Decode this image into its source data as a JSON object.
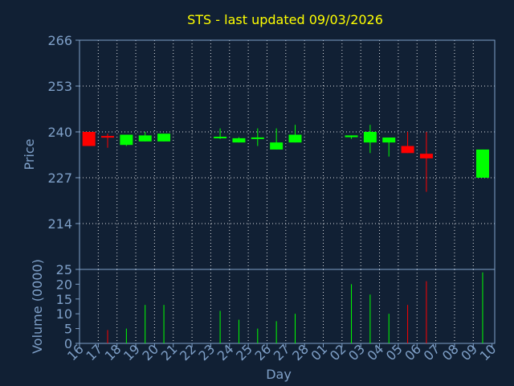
{
  "colors": {
    "background": "#112034",
    "axis": "#7fa0c8",
    "title": "#ffff00",
    "grid": "#ffffff",
    "up": "#00ff00",
    "down": "#ff0000"
  },
  "chart_data": {
    "type": "candlestick",
    "title": "STS - last updated 09/03/2026",
    "xlabel": "Day",
    "ylabel": "Price",
    "volume_label": "Volume (0000)",
    "grid": true,
    "ylim": [
      201,
      266
    ],
    "y_ticks": [
      214,
      227,
      240,
      253,
      266
    ],
    "volume_ylim": [
      0,
      25
    ],
    "volume_ticks": [
      0,
      5,
      10,
      15,
      20,
      25
    ],
    "x_ticks": [
      "16",
      "17",
      "18",
      "19",
      "20",
      "21",
      "22",
      "23",
      "24",
      "25",
      "26",
      "27",
      "28",
      "01",
      "02",
      "03",
      "04",
      "05",
      "06",
      "07",
      "08",
      "09",
      "10"
    ],
    "candles": [
      {
        "day": "16",
        "open": 240.0,
        "close": 236.0,
        "high": 240.0,
        "low": 236.0,
        "volume": 0
      },
      {
        "day": "17",
        "open": 238.6,
        "close": 238.2,
        "high": 239.5,
        "low": 235.5,
        "volume": 4.5
      },
      {
        "day": "18",
        "open": 236.3,
        "close": 239.2,
        "high": 239.2,
        "low": 236.0,
        "volume": 5
      },
      {
        "day": "19",
        "open": 237.3,
        "close": 239.0,
        "high": 240.0,
        "low": 237.3,
        "volume": 13
      },
      {
        "day": "20",
        "open": 237.3,
        "close": 239.5,
        "high": 239.5,
        "low": 237.3,
        "volume": 13
      },
      {
        "day": "23",
        "open": 238.0,
        "close": 238.4,
        "high": 241.0,
        "low": 238.0,
        "volume": 11
      },
      {
        "day": "24",
        "open": 237.0,
        "close": 238.2,
        "high": 238.5,
        "low": 237.0,
        "volume": 8
      },
      {
        "day": "25",
        "open": 238.0,
        "close": 238.2,
        "high": 241.0,
        "low": 236.0,
        "volume": 5
      },
      {
        "day": "26",
        "open": 235.0,
        "close": 237.0,
        "high": 241.0,
        "low": 235.0,
        "volume": 7.5
      },
      {
        "day": "27",
        "open": 237.0,
        "close": 239.2,
        "high": 242.0,
        "low": 237.0,
        "volume": 10
      },
      {
        "day": "02",
        "open": 238.5,
        "close": 239.0,
        "high": 239.0,
        "low": 238.0,
        "volume": 20
      },
      {
        "day": "03",
        "open": 237.0,
        "close": 240.0,
        "high": 242.0,
        "low": 234.0,
        "volume": 16.5
      },
      {
        "day": "04",
        "open": 237.0,
        "close": 238.4,
        "high": 238.4,
        "low": 233.0,
        "volume": 10
      },
      {
        "day": "05",
        "open": 236.0,
        "close": 234.0,
        "high": 240.0,
        "low": 234.0,
        "volume": 13
      },
      {
        "day": "06",
        "open": 233.8,
        "close": 232.5,
        "high": 240.0,
        "low": 223.0,
        "volume": 21
      },
      {
        "day": "09",
        "open": 227.0,
        "close": 235.0,
        "high": 235.0,
        "low": 227.0,
        "volume": 24
      }
    ]
  }
}
